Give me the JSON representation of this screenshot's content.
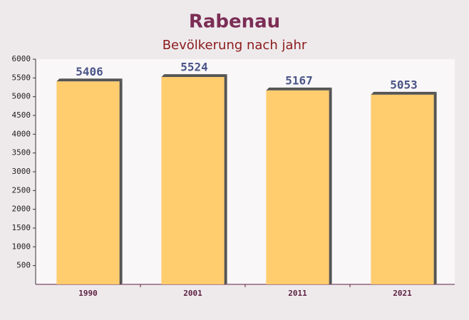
{
  "chart_data": {
    "type": "bar",
    "title": "Rabenau",
    "subtitle": "Bevölkerung nach jahr",
    "categories": [
      "1990",
      "2001",
      "2011",
      "2021"
    ],
    "values": [
      5406,
      5524,
      5167,
      5053
    ],
    "color": "#ffc966",
    "ylim": [
      0,
      6000
    ],
    "yticks": [
      500,
      1000,
      1500,
      2000,
      2500,
      3000,
      3500,
      4000,
      4500,
      5000,
      5500,
      6000
    ],
    "grid": false
  }
}
